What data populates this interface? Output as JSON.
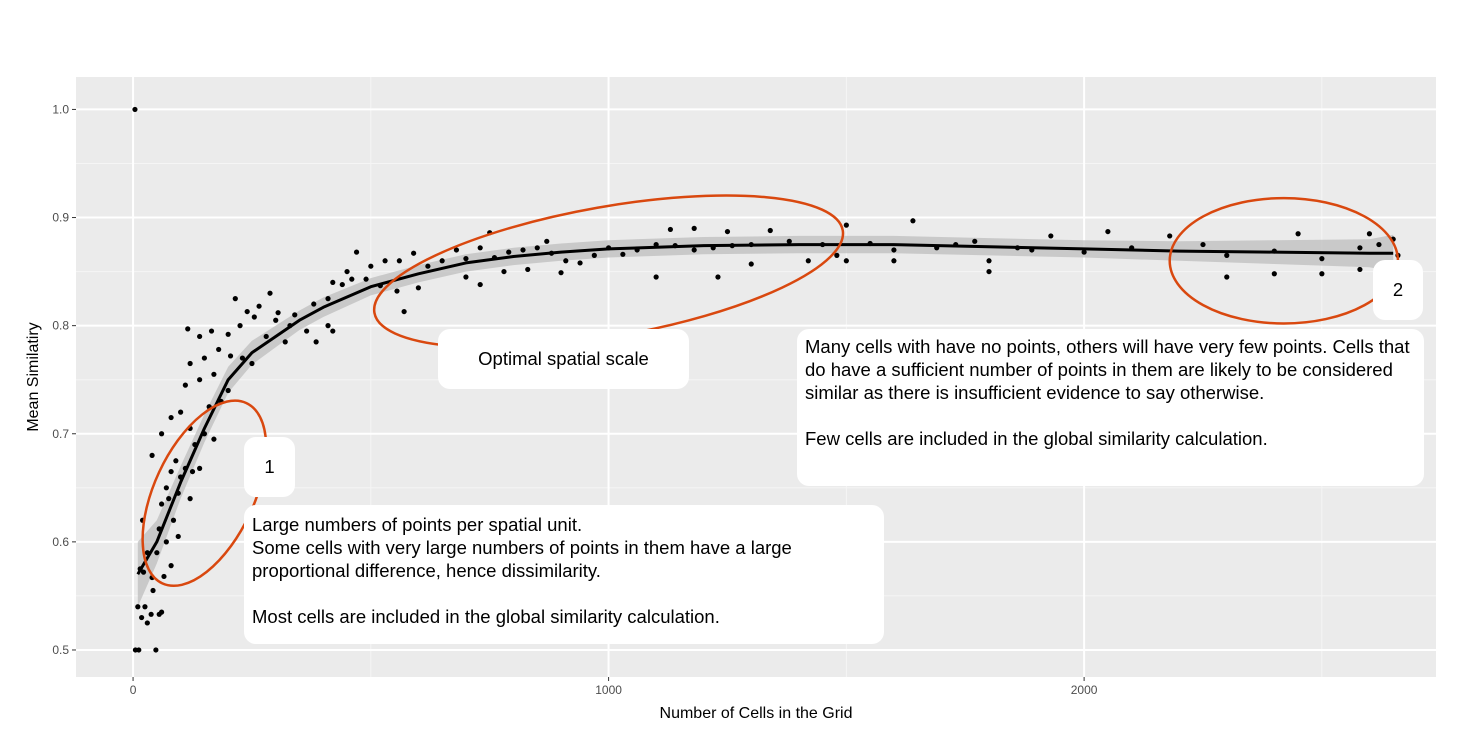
{
  "chart_data": {
    "type": "scatter",
    "title": "",
    "xlabel": "Number of Cells in the Grid",
    "ylabel": "Mean Similatiry",
    "xlim": [
      -120,
      2740
    ],
    "ylim": [
      0.475,
      1.03
    ],
    "x_ticks": [
      0,
      1000,
      2000
    ],
    "x_tick_labels": [
      "0",
      "1000",
      "2000"
    ],
    "y_ticks": [
      0.5,
      0.6,
      0.7,
      0.8,
      0.9,
      1.0
    ],
    "y_tick_labels": [
      "0.5",
      "0.6",
      "0.7",
      "0.8",
      "0.9",
      "1.0"
    ],
    "grid": true,
    "background": "#ebebeb",
    "colors": {
      "points": "#000000",
      "smooth": "#000000",
      "ribbon": "#bdbdbd",
      "ellipse": "#d9480f"
    },
    "series": [
      {
        "type": "scatter",
        "points": [
          [
            4,
            1.0
          ],
          [
            5,
            0.5
          ],
          [
            12,
            0.5
          ],
          [
            48,
            0.5
          ],
          [
            10,
            0.54
          ],
          [
            25,
            0.54
          ],
          [
            18,
            0.53
          ],
          [
            30,
            0.525
          ],
          [
            38,
            0.533
          ],
          [
            55,
            0.533
          ],
          [
            42,
            0.555
          ],
          [
            60,
            0.535
          ],
          [
            15,
            0.575
          ],
          [
            22,
            0.572
          ],
          [
            40,
            0.567
          ],
          [
            65,
            0.568
          ],
          [
            80,
            0.578
          ],
          [
            30,
            0.59
          ],
          [
            50,
            0.59
          ],
          [
            70,
            0.6
          ],
          [
            20,
            0.62
          ],
          [
            55,
            0.612
          ],
          [
            95,
            0.605
          ],
          [
            85,
            0.62
          ],
          [
            60,
            0.635
          ],
          [
            75,
            0.64
          ],
          [
            95,
            0.645
          ],
          [
            120,
            0.64
          ],
          [
            70,
            0.65
          ],
          [
            100,
            0.66
          ],
          [
            80,
            0.665
          ],
          [
            110,
            0.668
          ],
          [
            90,
            0.675
          ],
          [
            125,
            0.665
          ],
          [
            140,
            0.668
          ],
          [
            60,
            0.7
          ],
          [
            80,
            0.715
          ],
          [
            100,
            0.72
          ],
          [
            120,
            0.705
          ],
          [
            150,
            0.7
          ],
          [
            170,
            0.695
          ],
          [
            40,
            0.68
          ],
          [
            130,
            0.69
          ],
          [
            160,
            0.725
          ],
          [
            185,
            0.73
          ],
          [
            200,
            0.74
          ],
          [
            110,
            0.745
          ],
          [
            140,
            0.75
          ],
          [
            170,
            0.755
          ],
          [
            120,
            0.765
          ],
          [
            150,
            0.77
          ],
          [
            180,
            0.778
          ],
          [
            205,
            0.772
          ],
          [
            230,
            0.77
          ],
          [
            250,
            0.765
          ],
          [
            115,
            0.797
          ],
          [
            140,
            0.79
          ],
          [
            165,
            0.795
          ],
          [
            200,
            0.792
          ],
          [
            225,
            0.8
          ],
          [
            255,
            0.808
          ],
          [
            215,
            0.825
          ],
          [
            240,
            0.813
          ],
          [
            265,
            0.818
          ],
          [
            288,
            0.83
          ],
          [
            305,
            0.812
          ],
          [
            280,
            0.79
          ],
          [
            300,
            0.805
          ],
          [
            320,
            0.785
          ],
          [
            330,
            0.8
          ],
          [
            340,
            0.81
          ],
          [
            365,
            0.795
          ],
          [
            385,
            0.785
          ],
          [
            410,
            0.8
          ],
          [
            420,
            0.795
          ],
          [
            380,
            0.82
          ],
          [
            410,
            0.825
          ],
          [
            440,
            0.838
          ],
          [
            460,
            0.843
          ],
          [
            490,
            0.843
          ],
          [
            520,
            0.837
          ],
          [
            555,
            0.832
          ],
          [
            570,
            0.813
          ],
          [
            600,
            0.835
          ],
          [
            420,
            0.84
          ],
          [
            450,
            0.85
          ],
          [
            470,
            0.868
          ],
          [
            500,
            0.855
          ],
          [
            530,
            0.86
          ],
          [
            560,
            0.86
          ],
          [
            590,
            0.867
          ],
          [
            620,
            0.855
          ],
          [
            650,
            0.86
          ],
          [
            680,
            0.87
          ],
          [
            700,
            0.862
          ],
          [
            730,
            0.872
          ],
          [
            760,
            0.863
          ],
          [
            790,
            0.868
          ],
          [
            820,
            0.87
          ],
          [
            850,
            0.872
          ],
          [
            880,
            0.867
          ],
          [
            910,
            0.86
          ],
          [
            700,
            0.845
          ],
          [
            730,
            0.838
          ],
          [
            750,
            0.886
          ],
          [
            780,
            0.85
          ],
          [
            830,
            0.852
          ],
          [
            870,
            0.878
          ],
          [
            900,
            0.849
          ],
          [
            940,
            0.858
          ],
          [
            970,
            0.865
          ],
          [
            1000,
            0.872
          ],
          [
            1030,
            0.866
          ],
          [
            1060,
            0.87
          ],
          [
            1100,
            0.875
          ],
          [
            1140,
            0.874
          ],
          [
            1180,
            0.87
          ],
          [
            1220,
            0.872
          ],
          [
            1260,
            0.874
          ],
          [
            1300,
            0.875
          ],
          [
            1100,
            0.845
          ],
          [
            1130,
            0.889
          ],
          [
            1180,
            0.89
          ],
          [
            1230,
            0.845
          ],
          [
            1250,
            0.887
          ],
          [
            1300,
            0.857
          ],
          [
            1340,
            0.888
          ],
          [
            1380,
            0.878
          ],
          [
            1420,
            0.86
          ],
          [
            1450,
            0.875
          ],
          [
            1480,
            0.865
          ],
          [
            1500,
            0.893
          ],
          [
            1550,
            0.876
          ],
          [
            1600,
            0.87
          ],
          [
            1640,
            0.897
          ],
          [
            1690,
            0.872
          ],
          [
            1730,
            0.875
          ],
          [
            1770,
            0.878
          ],
          [
            1800,
            0.86
          ],
          [
            1860,
            0.872
          ],
          [
            1890,
            0.87
          ],
          [
            1930,
            0.883
          ],
          [
            2000,
            0.868
          ],
          [
            2050,
            0.887
          ],
          [
            2100,
            0.872
          ],
          [
            2180,
            0.883
          ],
          [
            2250,
            0.875
          ],
          [
            2300,
            0.865
          ],
          [
            2400,
            0.869
          ],
          [
            2450,
            0.885
          ],
          [
            2500,
            0.862
          ],
          [
            2580,
            0.872
          ],
          [
            2620,
            0.875
          ],
          [
            2650,
            0.88
          ],
          [
            2660,
            0.865
          ],
          [
            2300,
            0.845
          ],
          [
            2400,
            0.848
          ],
          [
            2500,
            0.848
          ],
          [
            2580,
            0.852
          ],
          [
            2600,
            0.885
          ],
          [
            1500,
            0.86
          ],
          [
            1600,
            0.86
          ],
          [
            1800,
            0.85
          ]
        ]
      },
      {
        "type": "line",
        "name": "",
        "points": [
          [
            10,
            0.57
          ],
          [
            50,
            0.6
          ],
          [
            100,
            0.655
          ],
          [
            150,
            0.705
          ],
          [
            200,
            0.75
          ],
          [
            250,
            0.775
          ],
          [
            300,
            0.79
          ],
          [
            350,
            0.805
          ],
          [
            400,
            0.817
          ],
          [
            500,
            0.836
          ],
          [
            600,
            0.848
          ],
          [
            700,
            0.858
          ],
          [
            800,
            0.864
          ],
          [
            900,
            0.868
          ],
          [
            1000,
            0.871
          ],
          [
            1200,
            0.874
          ],
          [
            1400,
            0.875
          ],
          [
            1600,
            0.875
          ],
          [
            1800,
            0.873
          ],
          [
            2000,
            0.871
          ],
          [
            2200,
            0.869
          ],
          [
            2400,
            0.868
          ],
          [
            2600,
            0.867
          ],
          [
            2650,
            0.867
          ]
        ],
        "band_halfwidth": [
          0.03,
          0.02,
          0.015,
          0.013,
          0.012,
          0.011,
          0.01,
          0.009,
          0.009,
          0.008,
          0.008,
          0.008,
          0.008,
          0.008,
          0.008,
          0.008,
          0.008,
          0.008,
          0.008,
          0.008,
          0.009,
          0.011,
          0.013,
          0.017
        ]
      }
    ],
    "annotations": {
      "ellipses": [
        {
          "name": "region-1",
          "cx": 150,
          "cy": 0.645,
          "rx_units": 105,
          "ry_units": 0.092,
          "angle_deg": 25
        },
        {
          "name": "optimal",
          "cx": 1000,
          "cy": 0.85,
          "rx_units": 500,
          "ry_units": 0.06,
          "angle_deg": -10
        },
        {
          "name": "region-2",
          "cx": 2420,
          "cy": 0.86,
          "rx_units": 240,
          "ry_units": 0.058,
          "angle_deg": 0
        }
      ],
      "boxes": {
        "optimal_label": "Optimal spatial scale",
        "region1_number": "1",
        "region2_number": "2",
        "region1_text": "Large numbers of points per spatial unit.\nSome cells with very large numbers of points in them have a large proportional difference, hence dissimilarity.\n\nMost cells are included in the global similarity calculation.",
        "region2_text": "Many cells with have no points, others will have very few points. Cells that do have a sufficient number of points in them are likely to be considered similar as there is insufficient evidence to say otherwise.\n\nFew cells are included in the global similarity calculation."
      }
    }
  }
}
